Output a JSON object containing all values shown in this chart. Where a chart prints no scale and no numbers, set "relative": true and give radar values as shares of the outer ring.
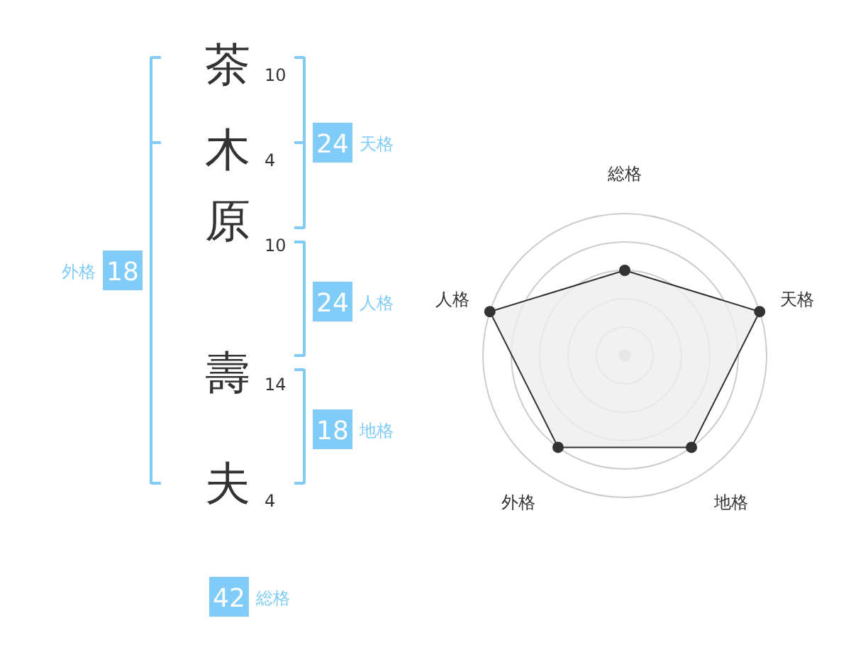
{
  "chart_data": [
    {
      "type": "other",
      "categories": [
        "茶",
        "木",
        "原",
        "壽",
        "夫"
      ],
      "values": [
        10,
        4,
        10,
        14,
        4
      ],
      "data_labels": true,
      "color": "#80ccf8",
      "annotations": [
        "24",
        "天格",
        "24",
        "人格",
        "18",
        "地格",
        "18",
        "外格",
        "42",
        "総格"
      ]
    },
    {
      "type": "radar",
      "categories": [
        "総格",
        "天格",
        "地格",
        "外格",
        "人格"
      ],
      "relative": true,
      "grid": true,
      "marker": "circle",
      "series": [
        {
          "color": "#333333",
          "values": [
            0.6,
            1,
            0.8,
            0.8,
            1
          ]
        }
      ]
    }
  ]
}
